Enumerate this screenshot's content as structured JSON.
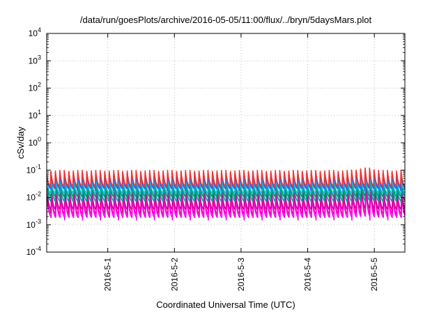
{
  "chart_data": {
    "type": "line",
    "title": "/data/run/goesPlots/archive/2016-05-05/11:00/flux/../bryn/5daysMars.plot",
    "xlabel": "Coordinated Universal Time (UTC)",
    "ylabel": "cSv/day",
    "y_scale": "log",
    "ylim": [
      0.0001,
      10000
    ],
    "xlim": [
      "2016-04-30T02:00",
      "2016-05-05T11:00"
    ],
    "y_ticks": [
      {
        "base": "10",
        "exp": "-4"
      },
      {
        "base": "10",
        "exp": "-3"
      },
      {
        "base": "10",
        "exp": "-2"
      },
      {
        "base": "10",
        "exp": "-1"
      },
      {
        "base": "10",
        "exp": "0"
      },
      {
        "base": "10",
        "exp": "1"
      },
      {
        "base": "10",
        "exp": "2"
      },
      {
        "base": "10",
        "exp": "3"
      },
      {
        "base": "10",
        "exp": "4"
      }
    ],
    "x_ticks": [
      {
        "label": "2016-5-1",
        "value": "2016-05-01T00:00"
      },
      {
        "label": "2016-5-2",
        "value": "2016-05-02T00:00"
      },
      {
        "label": "2016-5-3",
        "value": "2016-05-03T00:00"
      },
      {
        "label": "2016-5-4",
        "value": "2016-05-04T00:00"
      },
      {
        "label": "2016-5-5",
        "value": "2016-05-05T00:00"
      }
    ],
    "grid": true,
    "legend": "none",
    "pattern": "periodic sawtooth, ~97 min period, fast rise then decay",
    "series": [
      {
        "color": "#ff00ff",
        "peak": 0.012,
        "trough": 0.0015,
        "spike_2016_05_05": 0.028
      },
      {
        "color": "#ff00c0",
        "peak": 0.016,
        "trough": 0.002,
        "spike_2016_05_05": 0.036
      },
      {
        "color": "#cc0099",
        "peak": 0.02,
        "trough": 0.003,
        "spike_2016_05_05": 0.045
      },
      {
        "color": "#00a0a0",
        "peak": 0.035,
        "trough": 0.006,
        "spike_2016_05_05": 0.06
      },
      {
        "color": "#009966",
        "peak": 0.05,
        "trough": 0.009,
        "spike_2016_05_05": 0.075
      },
      {
        "color": "#20c0e0",
        "peak": 0.06,
        "trough": 0.012,
        "spike_2016_05_05": 0.09
      },
      {
        "color": "#2060ff",
        "peak": 0.08,
        "trough": 0.018,
        "spike_2016_05_05": 0.11
      },
      {
        "color": "#ee3333",
        "peak": 0.1,
        "trough": 0.022,
        "spike_2016_05_05": 0.125
      }
    ]
  }
}
